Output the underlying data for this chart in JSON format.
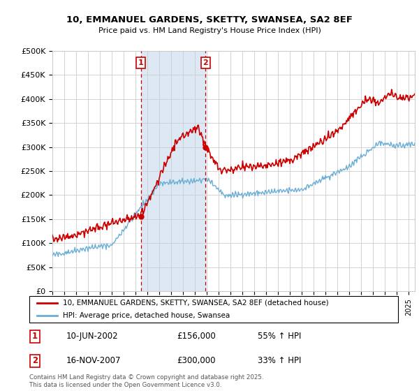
{
  "title_line1": "10, EMMANUEL GARDENS, SKETTY, SWANSEA, SA2 8EF",
  "title_line2": "Price paid vs. HM Land Registry's House Price Index (HPI)",
  "legend_label_red": "10, EMMANUEL GARDENS, SKETTY, SWANSEA, SA2 8EF (detached house)",
  "legend_label_blue": "HPI: Average price, detached house, Swansea",
  "sale1_date": "10-JUN-2002",
  "sale1_price": "£156,000",
  "sale1_hpi": "55% ↑ HPI",
  "sale1_year": 2002.44,
  "sale1_value": 156000,
  "sale2_date": "16-NOV-2007",
  "sale2_price": "£300,000",
  "sale2_hpi": "33% ↑ HPI",
  "sale2_year": 2007.88,
  "sale2_value": 300000,
  "ymin": 0,
  "ymax": 500000,
  "xmin": 1995.0,
  "xmax": 2025.5,
  "ylabel_ticks": [
    0,
    50000,
    100000,
    150000,
    200000,
    250000,
    300000,
    350000,
    400000,
    450000,
    500000
  ],
  "ylabel_labels": [
    "£0",
    "£50K",
    "£100K",
    "£150K",
    "£200K",
    "£250K",
    "£300K",
    "£350K",
    "£400K",
    "£450K",
    "£500K"
  ],
  "copyright_text": "Contains HM Land Registry data © Crown copyright and database right 2025.\nThis data is licensed under the Open Government Licence v3.0.",
  "shade_color": "#dce9f5",
  "red_color": "#cc0000",
  "blue_color": "#6aaed6",
  "grid_color": "#cccccc",
  "background_color": "#ffffff"
}
